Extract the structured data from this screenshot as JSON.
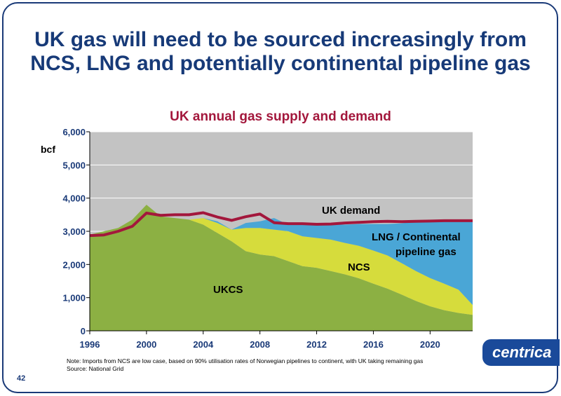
{
  "slide": {
    "title_line1": "UK gas will need to be sourced increasingly from",
    "title_line2": "NCS, LNG and potentially continental pipeline gas",
    "note_line1": "Note: Imports from NCS are low case, based on 90% utilisation rates of Norwegian pipelines to continent, with UK taking remaining gas",
    "note_line2": "Source: National Grid",
    "page_number": "42",
    "logo_text": "centrica"
  },
  "chart_data": {
    "type": "area",
    "title": "UK annual gas supply and demand",
    "ylabel": "bcf",
    "xlabel": "",
    "ylim": [
      0,
      6000
    ],
    "xlim": [
      1996,
      2023
    ],
    "yticks": [
      "0",
      "1,000",
      "2,000",
      "3,000",
      "4,000",
      "5,000",
      "6,000"
    ],
    "xticks": [
      "1996",
      "2000",
      "2004",
      "2008",
      "2012",
      "2016",
      "2020"
    ],
    "x": [
      1996,
      1997,
      1998,
      1999,
      2000,
      2001,
      2002,
      2003,
      2004,
      2005,
      2006,
      2007,
      2008,
      2009,
      2010,
      2011,
      2012,
      2013,
      2014,
      2015,
      2016,
      2017,
      2018,
      2019,
      2020,
      2021,
      2022,
      2023
    ],
    "series": [
      {
        "name": "UKCS",
        "color": "#8cb043",
        "values": [
          2900,
          3000,
          3100,
          3350,
          3800,
          3450,
          3400,
          3350,
          3200,
          2950,
          2700,
          2400,
          2300,
          2250,
          2100,
          1950,
          1900,
          1800,
          1700,
          1580,
          1420,
          1270,
          1090,
          900,
          740,
          620,
          540,
          480
        ]
      },
      {
        "name": "NCS",
        "color": "#d6dc3c",
        "values": [
          0,
          0,
          0,
          0,
          0,
          0,
          0,
          0,
          200,
          300,
          350,
          700,
          800,
          800,
          900,
          900,
          900,
          950,
          950,
          980,
          1000,
          1000,
          950,
          900,
          850,
          800,
          700,
          300
        ]
      },
      {
        "name": "LNG / Continental pipeline gas",
        "color": "#4aa6d6",
        "values": [
          0,
          0,
          0,
          0,
          0,
          0,
          0,
          0,
          0,
          50,
          0,
          150,
          200,
          350,
          200,
          380,
          400,
          450,
          550,
          660,
          800,
          950,
          1200,
          1500,
          1700,
          1880,
          2080,
          2550
        ]
      }
    ],
    "demand": {
      "name": "UK demand",
      "color": "#a3173c",
      "values": [
        2870,
        2890,
        3000,
        3150,
        3550,
        3480,
        3500,
        3500,
        3560,
        3430,
        3330,
        3440,
        3520,
        3260,
        3230,
        3230,
        3210,
        3220,
        3250,
        3270,
        3290,
        3300,
        3290,
        3300,
        3310,
        3320,
        3320,
        3320
      ]
    },
    "annotations": [
      "UK demand",
      "LNG / Continental",
      "pipeline gas",
      "NCS",
      "UKCS"
    ],
    "plot_background": "#c3c3c3",
    "grid": true
  }
}
